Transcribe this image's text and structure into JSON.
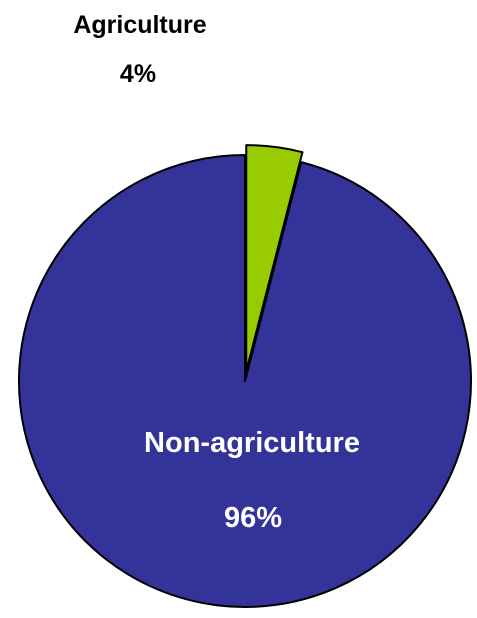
{
  "chart_data": {
    "type": "pie",
    "slices": [
      {
        "name": "Agriculture",
        "value": 4,
        "value_label": "4%",
        "color": "#99cc00",
        "exploded": true,
        "label_color": "#000000"
      },
      {
        "name": "Non-agriculture",
        "value": 96,
        "value_label": "96%",
        "color": "#333399",
        "exploded": false,
        "label_color": "#ffffff"
      }
    ],
    "start_angle": "12 o'clock",
    "direction": "clockwise",
    "outline_color": "#000000",
    "legend": "none",
    "background": "#ffffff"
  }
}
